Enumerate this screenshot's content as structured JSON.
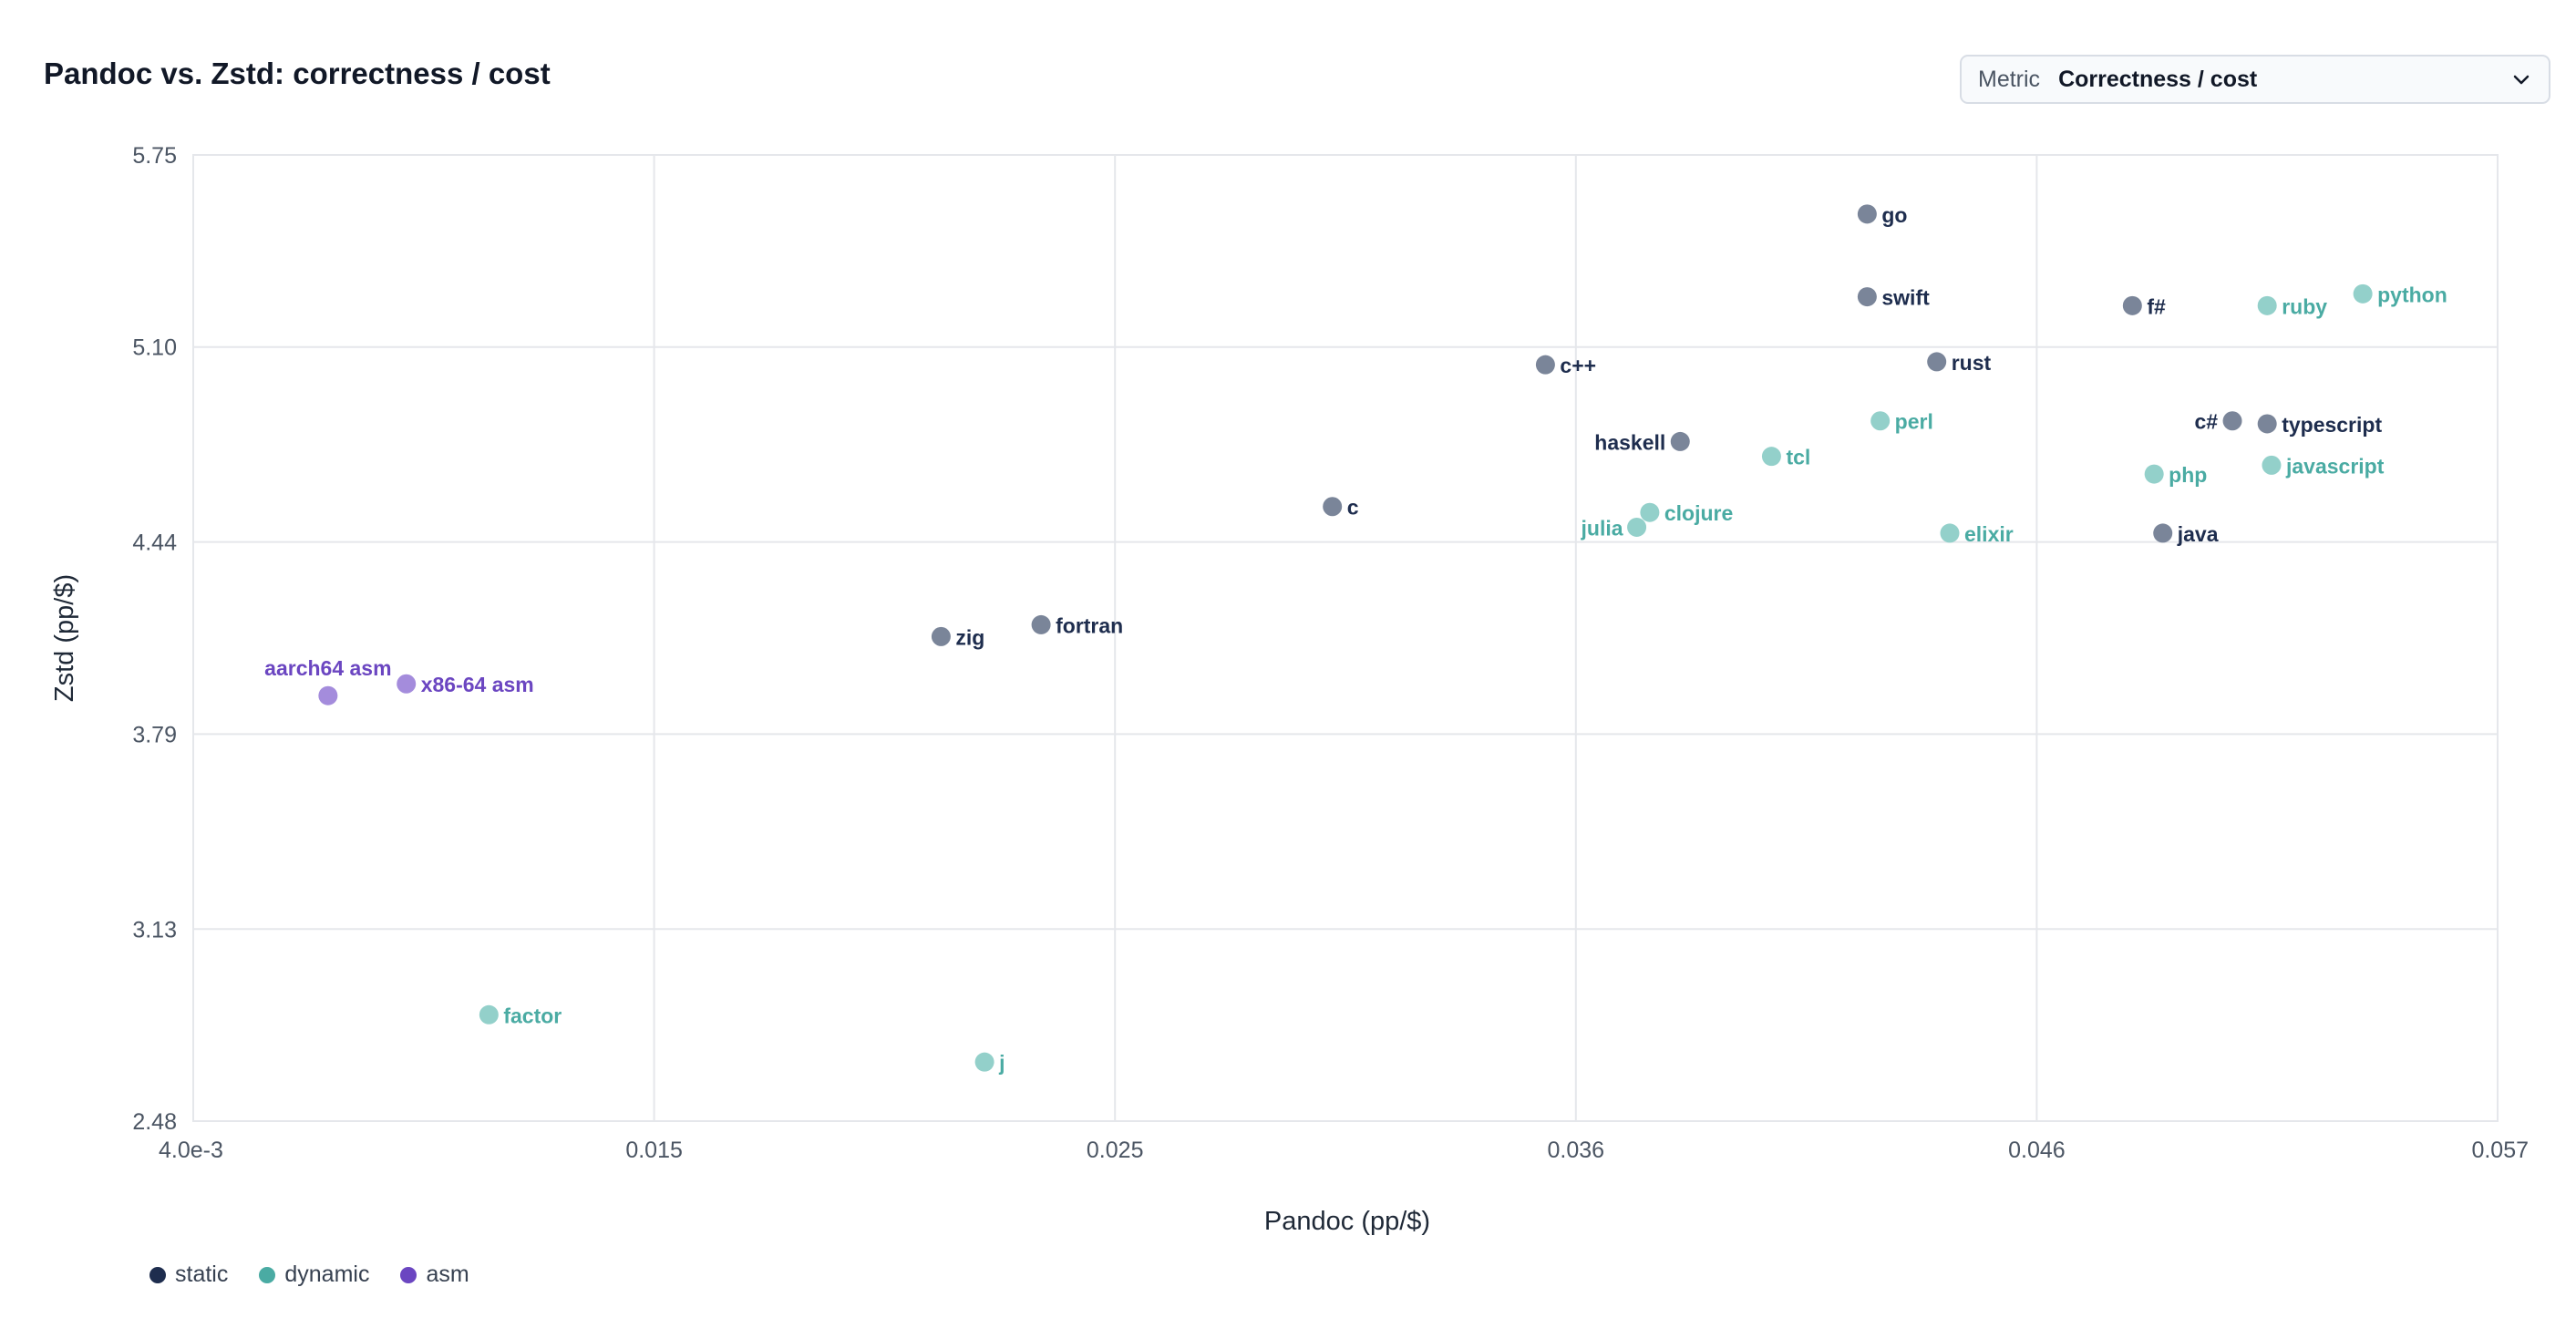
{
  "title": "Pandoc vs. Zstd: correctness / cost",
  "metric": {
    "label": "Metric",
    "value": "Correctness / cost",
    "icon": "chevron-down-icon"
  },
  "colors": {
    "static": "#1e2d4e",
    "dynamic": "#4aaba3",
    "asm": "#6b46c1",
    "static_point": "#7a8599",
    "dynamic_point": "#93d0ca",
    "asm_point": "#a48cdc",
    "grid": "#e5e7eb"
  },
  "chart_data": {
    "type": "scatter",
    "title": "Pandoc vs. Zstd: correctness / cost",
    "xlabel": "Pandoc (pp/$)",
    "ylabel": "Zstd (pp/$)",
    "xlim": [
      0.004,
      0.057
    ],
    "ylim": [
      2.48,
      5.75
    ],
    "x_ticks": [
      0.004,
      0.0146,
      0.0252,
      0.0358,
      0.0464,
      0.057
    ],
    "x_tick_labels": [
      "4.0e-3",
      "0.015",
      "0.025",
      "0.036",
      "0.046",
      "0.057"
    ],
    "y_ticks": [
      2.48,
      3.13,
      3.79,
      4.44,
      5.1,
      5.75
    ],
    "y_tick_labels": [
      "2.48",
      "3.13",
      "3.79",
      "4.44",
      "5.10",
      "5.75"
    ],
    "grid": true,
    "legend_position": "bottom-left",
    "groups": [
      "static",
      "dynamic",
      "asm"
    ],
    "legend": [
      {
        "name": "static",
        "group": "static"
      },
      {
        "name": "dynamic",
        "group": "dynamic"
      },
      {
        "name": "asm",
        "group": "asm"
      }
    ],
    "points": [
      {
        "label": "go",
        "group": "static",
        "x": 0.0425,
        "y": 5.55
      },
      {
        "label": "swift",
        "group": "static",
        "x": 0.0425,
        "y": 5.27
      },
      {
        "label": "f#",
        "group": "static",
        "x": 0.0486,
        "y": 5.24
      },
      {
        "label": "ruby",
        "group": "dynamic",
        "x": 0.0517,
        "y": 5.24
      },
      {
        "label": "python",
        "group": "dynamic",
        "x": 0.0539,
        "y": 5.28
      },
      {
        "label": "rust",
        "group": "static",
        "x": 0.0441,
        "y": 5.05
      },
      {
        "label": "c++",
        "group": "static",
        "x": 0.0351,
        "y": 5.04
      },
      {
        "label": "perl",
        "group": "dynamic",
        "x": 0.0428,
        "y": 4.85
      },
      {
        "label": "c#",
        "group": "static",
        "x": 0.0509,
        "y": 4.85
      },
      {
        "label": "typescript",
        "group": "static",
        "x": 0.0517,
        "y": 4.84
      },
      {
        "label": "haskell",
        "group": "static",
        "x": 0.0382,
        "y": 4.78
      },
      {
        "label": "tcl",
        "group": "dynamic",
        "x": 0.0403,
        "y": 4.73
      },
      {
        "label": "php",
        "group": "dynamic",
        "x": 0.0491,
        "y": 4.67
      },
      {
        "label": "javascript",
        "group": "dynamic",
        "x": 0.0518,
        "y": 4.7
      },
      {
        "label": "c",
        "group": "static",
        "x": 0.0302,
        "y": 4.56
      },
      {
        "label": "clojure",
        "group": "dynamic",
        "x": 0.0375,
        "y": 4.54
      },
      {
        "label": "julia",
        "group": "dynamic",
        "x": 0.0372,
        "y": 4.49
      },
      {
        "label": "elixir",
        "group": "dynamic",
        "x": 0.0444,
        "y": 4.47
      },
      {
        "label": "java",
        "group": "static",
        "x": 0.0493,
        "y": 4.47
      },
      {
        "label": "zig",
        "group": "static",
        "x": 0.0212,
        "y": 4.12
      },
      {
        "label": "fortran",
        "group": "static",
        "x": 0.0235,
        "y": 4.16
      },
      {
        "label": "x86-64 asm",
        "group": "asm",
        "x": 0.0089,
        "y": 3.96
      },
      {
        "label": "aarch64 asm",
        "group": "asm",
        "x": 0.0071,
        "y": 3.92
      },
      {
        "label": "factor",
        "group": "dynamic",
        "x": 0.0108,
        "y": 2.84
      },
      {
        "label": "j",
        "group": "dynamic",
        "x": 0.0222,
        "y": 2.68
      }
    ]
  }
}
